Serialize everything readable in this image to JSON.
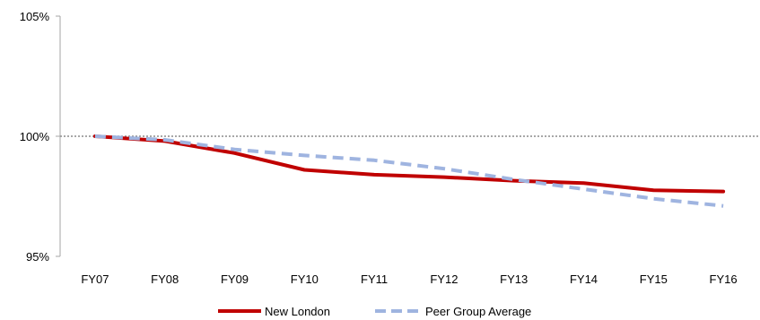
{
  "chart_data": {
    "type": "line",
    "categories": [
      "FY07",
      "FY08",
      "FY09",
      "FY10",
      "FY11",
      "FY12",
      "FY13",
      "FY14",
      "FY15",
      "FY16"
    ],
    "series": [
      {
        "name": "New London",
        "color": "#c00000",
        "style": "solid",
        "values": [
          100.0,
          99.8,
          99.3,
          98.6,
          98.4,
          98.3,
          98.15,
          98.05,
          97.75,
          97.7
        ]
      },
      {
        "name": "Peer Group Average",
        "color": "#9fb4e0",
        "style": "dashed",
        "values": [
          100.0,
          99.85,
          99.45,
          99.2,
          99.0,
          98.65,
          98.2,
          97.8,
          97.4,
          97.1
        ]
      }
    ],
    "ylim": [
      95,
      105
    ],
    "yticks": [
      95,
      100,
      105
    ],
    "ytick_labels": [
      "95%",
      "100%",
      "105%"
    ],
    "reference_line": {
      "value": 100,
      "color": "#8c8c8c",
      "style": "dotted"
    },
    "grid": false,
    "legend_position": "bottom"
  }
}
